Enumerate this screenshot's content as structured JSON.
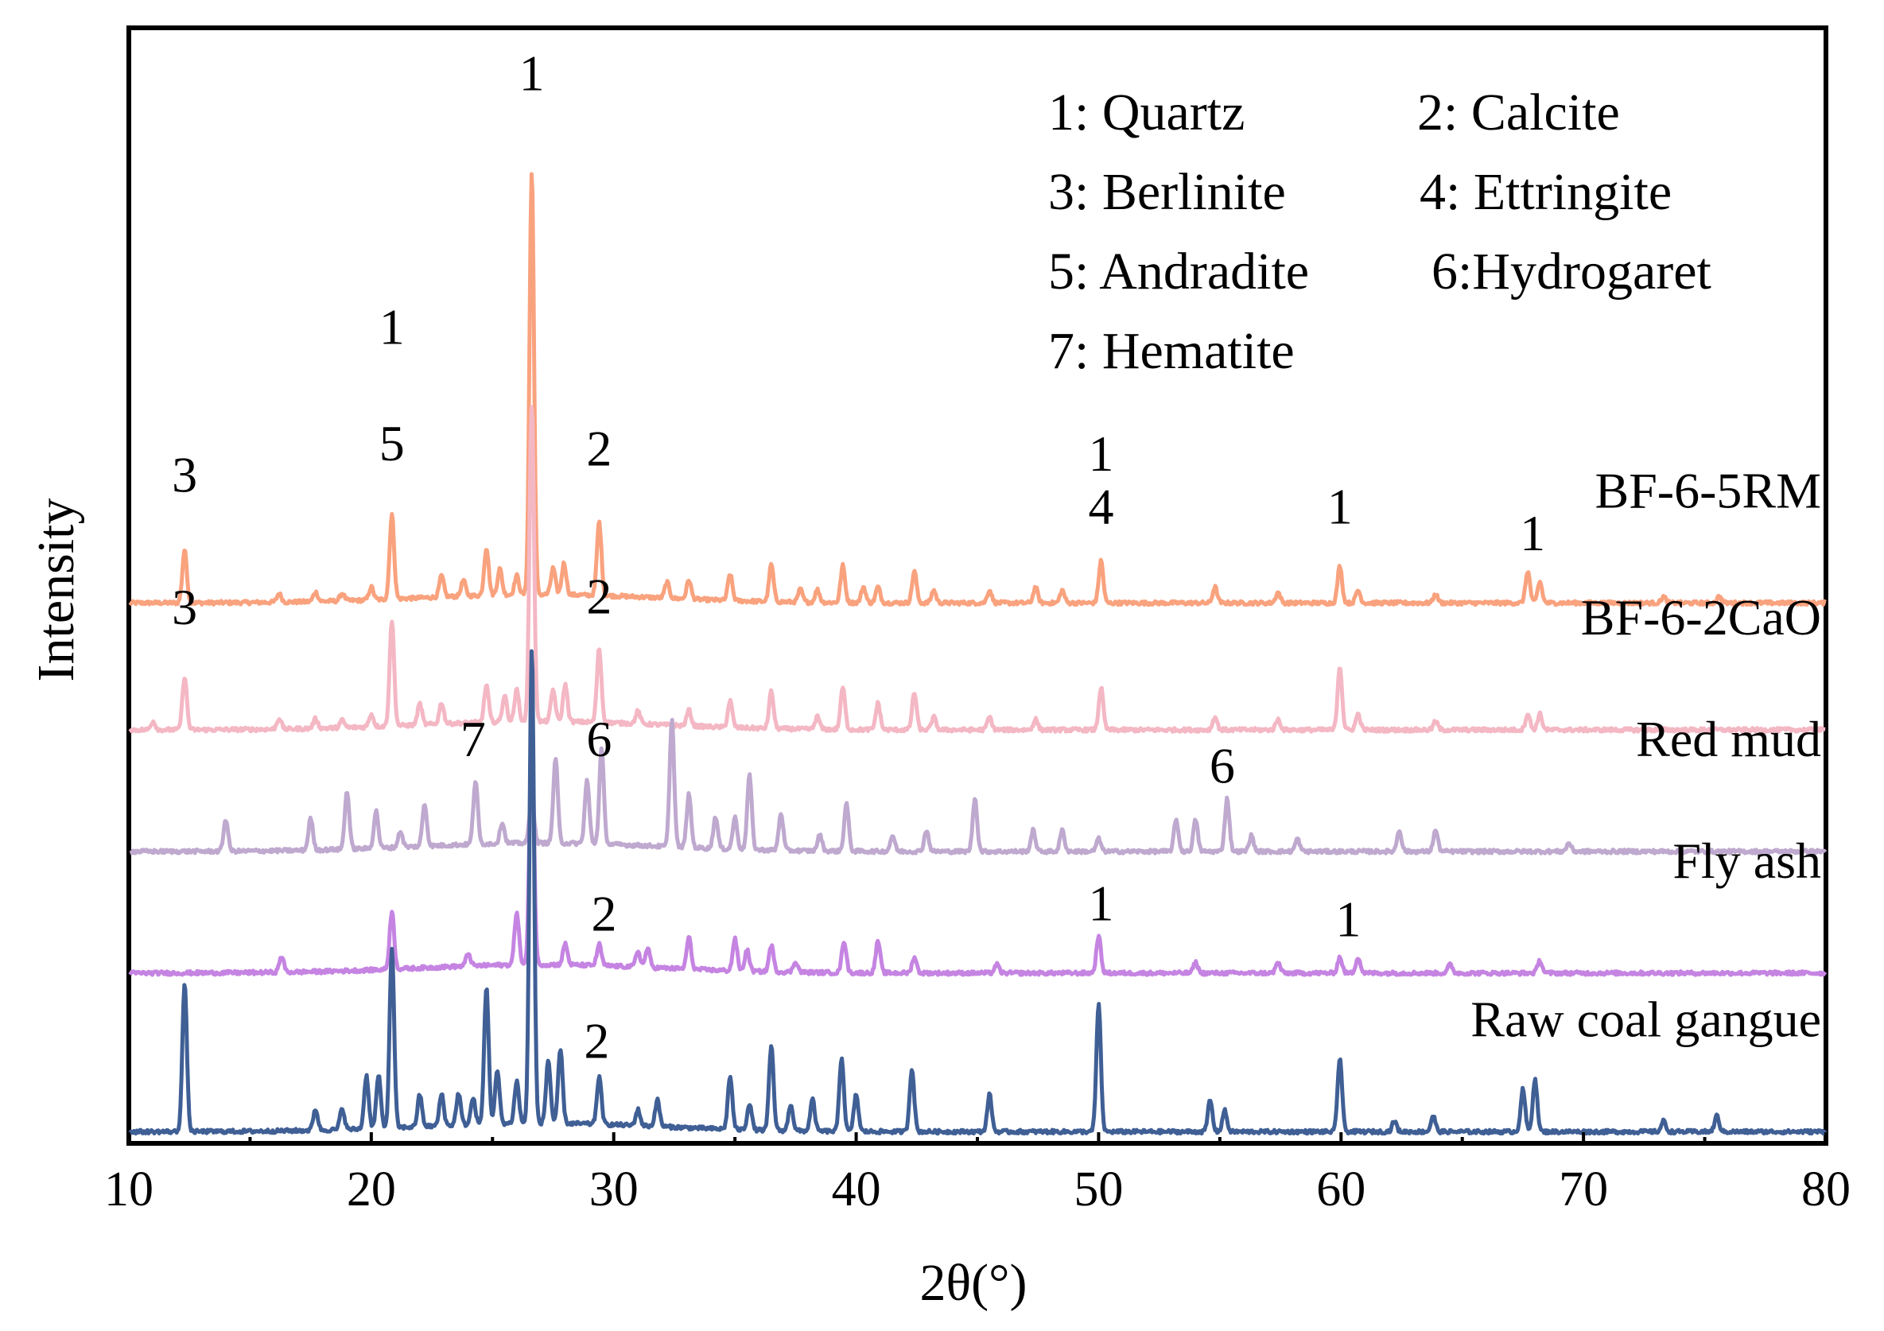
{
  "chart_data": {
    "type": "line",
    "title": "",
    "xlabel": "2θ(°)",
    "ylabel": "Intensity",
    "xlim": [
      10,
      80
    ],
    "xticks": [
      10,
      20,
      30,
      40,
      50,
      60,
      70,
      80
    ],
    "xtick_labels": [
      "10",
      "20",
      "30",
      "40",
      "50",
      "60",
      "70",
      "80"
    ],
    "yticks_shown": false,
    "legend": {
      "placement": "top-right",
      "entries": [
        "1: Quartz",
        "2: Calcite",
        "3: Berlinite",
        "4: Ettringite",
        "5: Andradite",
        "6:Hydrogaret",
        "7: Hematite"
      ]
    },
    "series": [
      {
        "name": "BF-6-5RM",
        "color": "#F9A27E",
        "baseline": 5.05,
        "peaks": [
          [
            12.3,
            0.5
          ],
          [
            16.2,
            0.08
          ],
          [
            17.7,
            0.09
          ],
          [
            18.8,
            0.07
          ],
          [
            20.0,
            0.12
          ],
          [
            20.85,
            0.8
          ],
          [
            22.9,
            0.2
          ],
          [
            23.8,
            0.15
          ],
          [
            24.75,
            0.45
          ],
          [
            25.3,
            0.25
          ],
          [
            26.0,
            0.18
          ],
          [
            26.62,
            4.0
          ],
          [
            27.5,
            0.25
          ],
          [
            27.95,
            0.3
          ],
          [
            29.4,
            0.7
          ],
          [
            32.2,
            0.15
          ],
          [
            33.1,
            0.18
          ],
          [
            34.8,
            0.25
          ],
          [
            36.5,
            0.35
          ],
          [
            37.7,
            0.12
          ],
          [
            38.4,
            0.12
          ],
          [
            39.45,
            0.35
          ],
          [
            40.3,
            0.15
          ],
          [
            40.9,
            0.15
          ],
          [
            42.4,
            0.3
          ],
          [
            43.2,
            0.12
          ],
          [
            45.5,
            0.12
          ],
          [
            47.4,
            0.15
          ],
          [
            48.5,
            0.12
          ],
          [
            50.1,
            0.4
          ],
          [
            54.8,
            0.15
          ],
          [
            57.4,
            0.1
          ],
          [
            59.95,
            0.35
          ],
          [
            60.7,
            0.12
          ],
          [
            63.9,
            0.08
          ],
          [
            67.7,
            0.3
          ],
          [
            68.2,
            0.2
          ],
          [
            73.3,
            0.06
          ],
          [
            75.6,
            0.06
          ]
        ]
      },
      {
        "name": "BF-6-2CaO",
        "color": "#F4B7C4",
        "baseline": 3.85,
        "peaks": [
          [
            11.0,
            0.08
          ],
          [
            12.3,
            0.5
          ],
          [
            16.2,
            0.1
          ],
          [
            17.7,
            0.09
          ],
          [
            18.8,
            0.07
          ],
          [
            20.0,
            0.12
          ],
          [
            20.85,
            1.0
          ],
          [
            22.0,
            0.2
          ],
          [
            22.9,
            0.2
          ],
          [
            24.75,
            0.35
          ],
          [
            25.5,
            0.25
          ],
          [
            26.0,
            0.3
          ],
          [
            26.62,
            3.0
          ],
          [
            27.5,
            0.3
          ],
          [
            28.0,
            0.35
          ],
          [
            29.4,
            0.7
          ],
          [
            31.0,
            0.12
          ],
          [
            33.1,
            0.15
          ],
          [
            34.8,
            0.25
          ],
          [
            36.5,
            0.35
          ],
          [
            38.4,
            0.12
          ],
          [
            39.45,
            0.4
          ],
          [
            40.9,
            0.25
          ],
          [
            42.4,
            0.35
          ],
          [
            43.2,
            0.12
          ],
          [
            45.5,
            0.12
          ],
          [
            47.4,
            0.1
          ],
          [
            50.1,
            0.4
          ],
          [
            54.8,
            0.12
          ],
          [
            57.4,
            0.1
          ],
          [
            59.95,
            0.6
          ],
          [
            60.7,
            0.15
          ],
          [
            63.9,
            0.08
          ],
          [
            67.7,
            0.15
          ],
          [
            68.2,
            0.15
          ]
        ]
      },
      {
        "name": "Red mud",
        "color": "#BFA9CF",
        "baseline": 2.7,
        "peaks": [
          [
            14.0,
            0.3
          ],
          [
            17.5,
            0.3
          ],
          [
            19.0,
            0.55
          ],
          [
            20.2,
            0.35
          ],
          [
            21.2,
            0.15
          ],
          [
            22.2,
            0.4
          ],
          [
            24.3,
            0.6
          ],
          [
            25.4,
            0.2
          ],
          [
            26.62,
            0.45
          ],
          [
            27.6,
            0.8
          ],
          [
            28.9,
            0.6
          ],
          [
            29.5,
            0.9
          ],
          [
            32.4,
            1.2
          ],
          [
            33.1,
            0.5
          ],
          [
            34.2,
            0.3
          ],
          [
            35.0,
            0.3
          ],
          [
            35.6,
            0.7
          ],
          [
            36.9,
            0.35
          ],
          [
            38.5,
            0.15
          ],
          [
            39.6,
            0.45
          ],
          [
            41.5,
            0.15
          ],
          [
            42.9,
            0.2
          ],
          [
            44.9,
            0.5
          ],
          [
            47.3,
            0.2
          ],
          [
            48.5,
            0.2
          ],
          [
            50.0,
            0.12
          ],
          [
            53.2,
            0.3
          ],
          [
            54.0,
            0.3
          ],
          [
            55.3,
            0.5
          ],
          [
            56.3,
            0.15
          ],
          [
            58.2,
            0.12
          ],
          [
            62.4,
            0.2
          ],
          [
            63.9,
            0.2
          ],
          [
            69.4,
            0.08
          ]
        ]
      },
      {
        "name": "Fly ash",
        "color": "#C584E2",
        "baseline": 1.55,
        "peaks": [
          [
            16.3,
            0.15
          ],
          [
            20.85,
            0.55
          ],
          [
            24.0,
            0.12
          ],
          [
            26.0,
            0.5
          ],
          [
            26.62,
            2.2
          ],
          [
            28.0,
            0.2
          ],
          [
            29.4,
            0.2
          ],
          [
            31.0,
            0.15
          ],
          [
            31.4,
            0.18
          ],
          [
            33.1,
            0.3
          ],
          [
            35.0,
            0.3
          ],
          [
            35.5,
            0.2
          ],
          [
            36.5,
            0.25
          ],
          [
            37.5,
            0.1
          ],
          [
            39.5,
            0.3
          ],
          [
            40.9,
            0.3
          ],
          [
            42.4,
            0.15
          ],
          [
            45.8,
            0.08
          ],
          [
            50.0,
            0.35
          ],
          [
            54.0,
            0.1
          ],
          [
            57.4,
            0.1
          ],
          [
            59.95,
            0.15
          ],
          [
            60.7,
            0.15
          ],
          [
            64.5,
            0.08
          ],
          [
            68.2,
            0.12
          ]
        ]
      },
      {
        "name": "Raw coal gangue",
        "color": "#3F5F95",
        "baseline": 0.05,
        "peaks": [
          [
            12.3,
            1.4
          ],
          [
            17.7,
            0.2
          ],
          [
            18.8,
            0.2
          ],
          [
            19.8,
            0.5
          ],
          [
            20.3,
            0.5
          ],
          [
            20.85,
            1.7
          ],
          [
            22.0,
            0.3
          ],
          [
            22.9,
            0.3
          ],
          [
            23.6,
            0.3
          ],
          [
            24.2,
            0.25
          ],
          [
            24.75,
            1.3
          ],
          [
            25.2,
            0.5
          ],
          [
            26.0,
            0.4
          ],
          [
            26.62,
            4.5
          ],
          [
            27.3,
            0.6
          ],
          [
            27.8,
            0.7
          ],
          [
            29.4,
            0.45
          ],
          [
            31.0,
            0.15
          ],
          [
            31.8,
            0.25
          ],
          [
            34.8,
            0.5
          ],
          [
            35.6,
            0.25
          ],
          [
            36.5,
            0.8
          ],
          [
            37.3,
            0.25
          ],
          [
            38.2,
            0.3
          ],
          [
            39.4,
            0.7
          ],
          [
            40.0,
            0.35
          ],
          [
            42.3,
            0.6
          ],
          [
            45.5,
            0.35
          ],
          [
            50.0,
            1.2
          ],
          [
            54.6,
            0.3
          ],
          [
            55.2,
            0.2
          ],
          [
            59.95,
            0.7
          ],
          [
            62.2,
            0.1
          ],
          [
            63.8,
            0.15
          ],
          [
            67.5,
            0.4
          ],
          [
            68.0,
            0.5
          ],
          [
            73.3,
            0.1
          ],
          [
            75.5,
            0.15
          ]
        ]
      }
    ],
    "series_labels": [
      "BF-6-5RM",
      "BF-6-2CaO",
      "Red mud",
      "Fly ash",
      "Raw coal gangue"
    ],
    "annotations": [
      {
        "text": "1",
        "x": 26.62,
        "series": "BF-6-5RM",
        "offset": 9.9
      },
      {
        "text": "3",
        "x": 12.3,
        "series": "BF-6-5RM",
        "offset": 6.1
      },
      {
        "text": "1",
        "x": 20.85,
        "series": "BF-6-5RM",
        "offset": 7.5
      },
      {
        "text": "5",
        "x": 20.85,
        "series": "BF-6-5RM",
        "offset": 6.4
      },
      {
        "text": "2",
        "x": 29.4,
        "series": "BF-6-5RM",
        "offset": 6.35
      },
      {
        "text": "1",
        "x": 50.1,
        "series": "BF-6-5RM",
        "offset": 6.3
      },
      {
        "text": "4",
        "x": 50.1,
        "series": "BF-6-5RM",
        "offset": 5.8
      },
      {
        "text": "1",
        "x": 59.95,
        "series": "BF-6-5RM",
        "offset": 5.8
      },
      {
        "text": "1",
        "x": 67.9,
        "series": "BF-6-5RM",
        "offset": 5.55
      },
      {
        "text": "3",
        "x": 12.3,
        "series": "BF-6-2CaO",
        "offset": 4.85
      },
      {
        "text": "2",
        "x": 29.4,
        "series": "BF-6-2CaO",
        "offset": 4.95
      },
      {
        "text": "7",
        "x": 24.2,
        "series": "Red mud",
        "offset": 3.6
      },
      {
        "text": "6",
        "x": 29.4,
        "series": "Red mud",
        "offset": 3.6
      },
      {
        "text": "6",
        "x": 55.1,
        "series": "Red mud",
        "offset": 3.35
      },
      {
        "text": "2",
        "x": 29.6,
        "series": "Fly ash",
        "offset": 1.95
      },
      {
        "text": "1",
        "x": 50.1,
        "series": "Fly ash",
        "offset": 2.05
      },
      {
        "text": "1",
        "x": 60.3,
        "series": "Fly ash",
        "offset": 1.9
      },
      {
        "text": "2",
        "x": 29.3,
        "series": "Raw coal gangue",
        "offset": 0.75
      }
    ]
  }
}
